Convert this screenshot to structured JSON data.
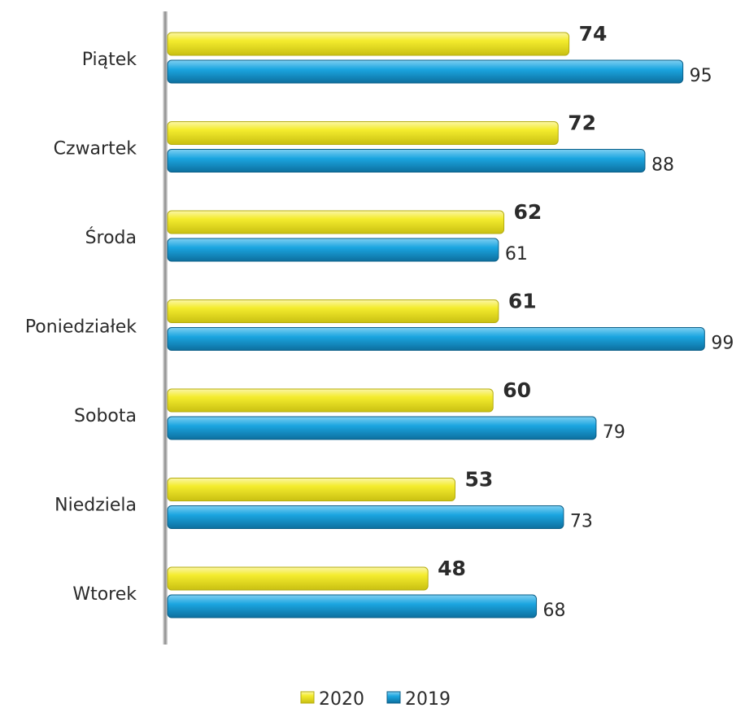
{
  "chart_data": {
    "type": "bar",
    "orientation": "horizontal",
    "categories": [
      "Piątek",
      "Czwartek",
      "Środa",
      "Poniedziałek",
      "Sobota",
      "Niedziela",
      "Wtorek"
    ],
    "series": [
      {
        "name": "2020",
        "color": "#f2e81c",
        "values": [
          74,
          72,
          62,
          61,
          60,
          53,
          48
        ]
      },
      {
        "name": "2019",
        "color": "#1aa3df",
        "values": [
          95,
          88,
          61,
          99,
          79,
          73,
          68
        ]
      }
    ],
    "xlim": [
      0,
      100
    ],
    "grid": false,
    "legend_position": "bottom-center"
  }
}
